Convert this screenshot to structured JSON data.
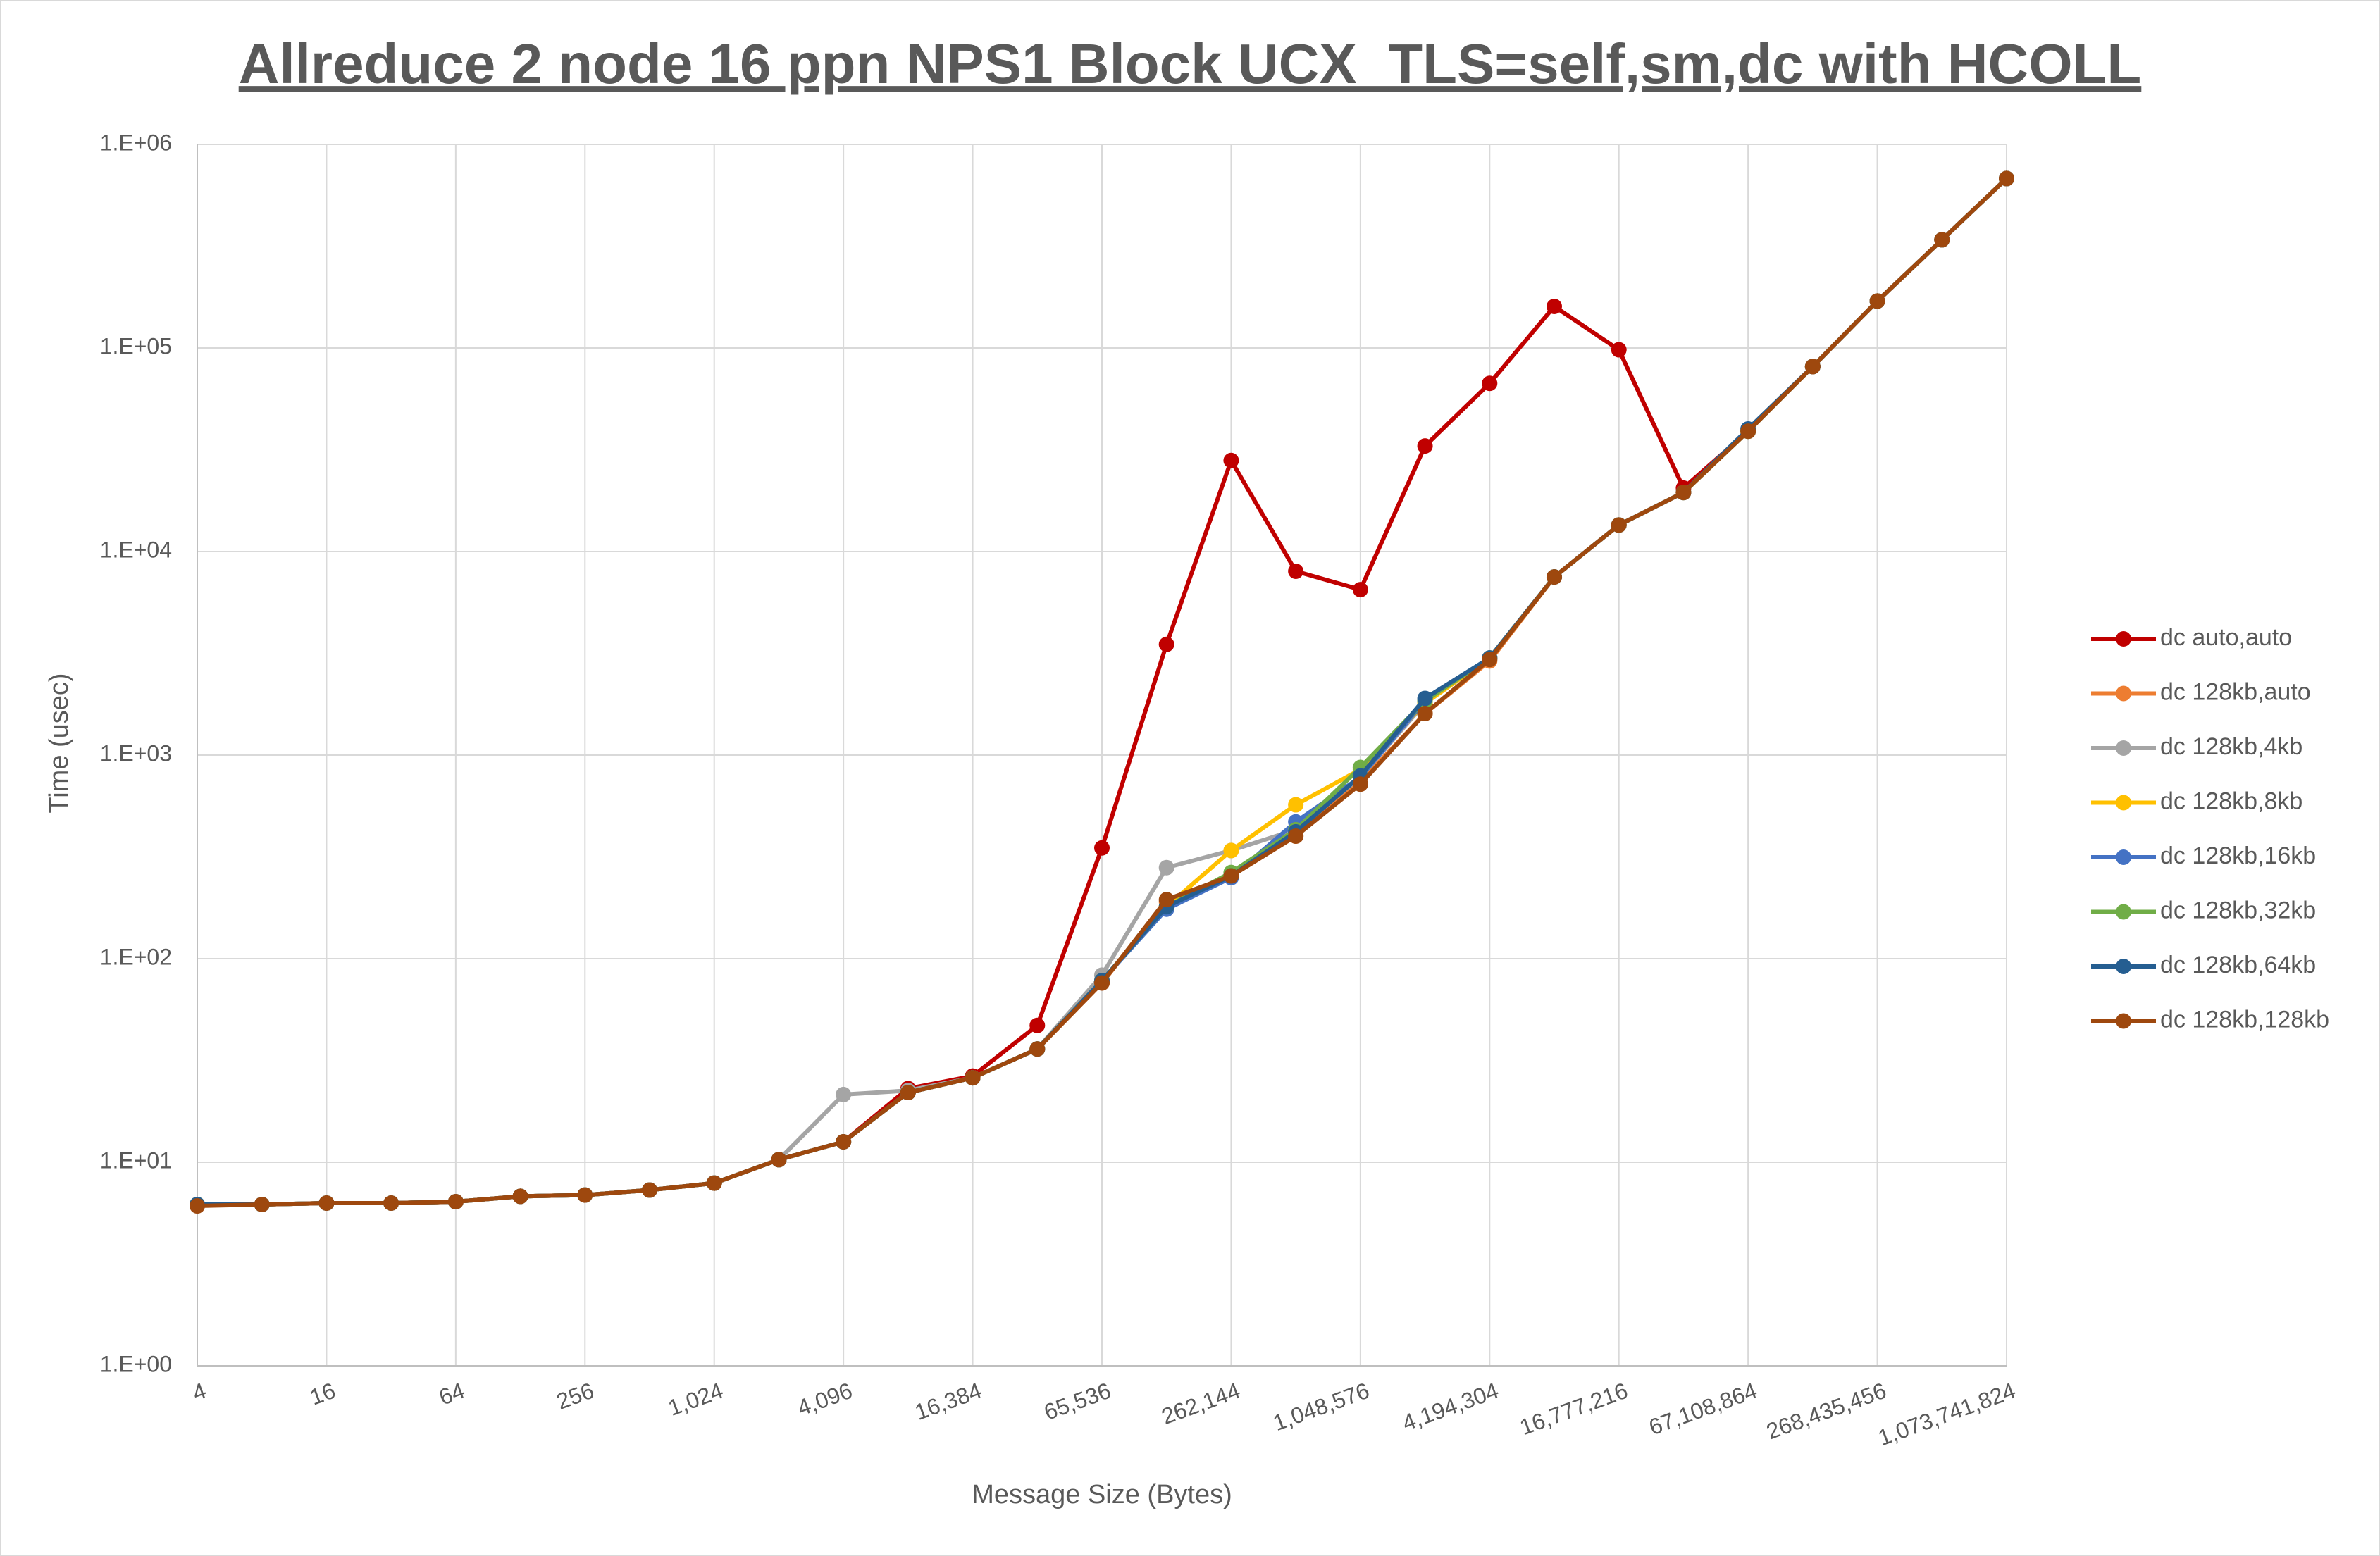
{
  "chart_data": {
    "type": "line",
    "title": "Allreduce 2 node 16 ppn NPS1 Block UCX_TLS=self,sm,dc with HCOLL",
    "x_label": "Message Size (Bytes)",
    "y_label": "Time (usec)",
    "y_scale": "log",
    "grid": true,
    "legend": "right",
    "categories": [
      "4",
      null,
      "16",
      null,
      "64",
      null,
      "256",
      null,
      "1,024",
      null,
      "4,096",
      null,
      "16,384",
      null,
      "65,536",
      null,
      "262,144",
      null,
      "1,048,576",
      null,
      "4,194,304",
      null,
      "16,777,216",
      null,
      "67,108,864",
      null,
      "268,435,456",
      null,
      "1,073,741,824"
    ],
    "ylim": [
      1,
      1000000
    ],
    "yticks": [
      {
        "value": 1,
        "label": "1.E+00"
      },
      {
        "value": 10,
        "label": "1.E+01"
      },
      {
        "value": 100,
        "label": "1.E+02"
      },
      {
        "value": 1000,
        "label": "1.E+03"
      },
      {
        "value": 10000,
        "label": "1.E+04"
      },
      {
        "value": 100000,
        "label": "1.E+05"
      },
      {
        "value": 1000000,
        "label": "1.E+06"
      }
    ],
    "series": [
      {
        "name": "dc auto,auto",
        "color": "#c00000",
        "values": [
          6.2,
          6.2,
          6.3,
          6.3,
          6.4,
          6.8,
          6.9,
          7.3,
          7.9,
          10.3,
          12.6,
          23,
          26.5,
          47,
          350,
          3500,
          28000,
          8000,
          6500,
          33000,
          67000,
          160000,
          98000,
          20500,
          39000,
          81000,
          170000,
          340000,
          680000
        ]
      },
      {
        "name": "dc 128kb,auto",
        "color": "#ed7d31",
        "values": [
          6.2,
          6.2,
          6.3,
          6.3,
          6.4,
          6.8,
          6.9,
          7.3,
          7.9,
          10.3,
          12.6,
          22,
          26,
          36,
          76,
          190,
          255,
          400,
          740,
          1600,
          2900,
          7500,
          13500,
          19500,
          39000,
          81000,
          170000,
          340000,
          680000
        ]
      },
      {
        "name": "dc 128kb,4kb",
        "color": "#a5a5a5",
        "values": [
          6.2,
          6.2,
          6.3,
          6.3,
          6.4,
          6.8,
          6.9,
          7.3,
          7.9,
          10.3,
          21.5,
          22.5,
          26,
          36,
          83,
          280,
          340,
          430,
          780,
          1800,
          3000,
          7500,
          13500,
          19500,
          40000,
          81000,
          170000,
          340000,
          680000
        ]
      },
      {
        "name": "dc 128kb,8kb",
        "color": "#ffc000",
        "values": [
          6.2,
          6.2,
          6.3,
          6.3,
          6.4,
          6.8,
          6.9,
          7.3,
          7.9,
          10.3,
          12.6,
          22,
          26,
          36,
          78,
          180,
          340,
          570,
          850,
          1800,
          3000,
          7500,
          13500,
          19500,
          39000,
          81000,
          170000,
          340000,
          680000
        ]
      },
      {
        "name": "dc 128kb,16kb",
        "color": "#4472c4",
        "values": [
          6.2,
          6.2,
          6.3,
          6.3,
          6.4,
          6.8,
          6.9,
          7.3,
          7.9,
          10.3,
          12.6,
          22,
          26,
          36,
          78,
          175,
          250,
          470,
          780,
          1850,
          3000,
          7500,
          13500,
          19500,
          39000,
          81000,
          170000,
          340000,
          680000
        ]
      },
      {
        "name": "dc 128kb,32kb",
        "color": "#70ad47",
        "values": [
          6.2,
          6.2,
          6.3,
          6.3,
          6.4,
          6.8,
          6.9,
          7.3,
          7.9,
          10.3,
          12.6,
          22,
          26,
          36,
          78,
          180,
          265,
          430,
          870,
          1850,
          3000,
          7500,
          13500,
          19500,
          39000,
          81000,
          170000,
          340000,
          680000
        ]
      },
      {
        "name": "dc 128kb,64kb",
        "color": "#255e91",
        "values": [
          6.2,
          6.2,
          6.3,
          6.3,
          6.4,
          6.8,
          6.9,
          7.3,
          7.9,
          10.3,
          12.6,
          22,
          26,
          36,
          78,
          180,
          255,
          420,
          790,
          1900,
          3000,
          7500,
          13500,
          19500,
          40000,
          81000,
          170000,
          340000,
          680000
        ]
      },
      {
        "name": "dc 128kb,128kb",
        "color": "#9e480e",
        "values": [
          6.1,
          6.2,
          6.3,
          6.3,
          6.4,
          6.8,
          6.9,
          7.3,
          7.9,
          10.3,
          12.6,
          22,
          26,
          36,
          76,
          195,
          255,
          400,
          720,
          1600,
          2950,
          7500,
          13500,
          19500,
          39000,
          81000,
          170000,
          340000,
          680000
        ]
      }
    ]
  }
}
